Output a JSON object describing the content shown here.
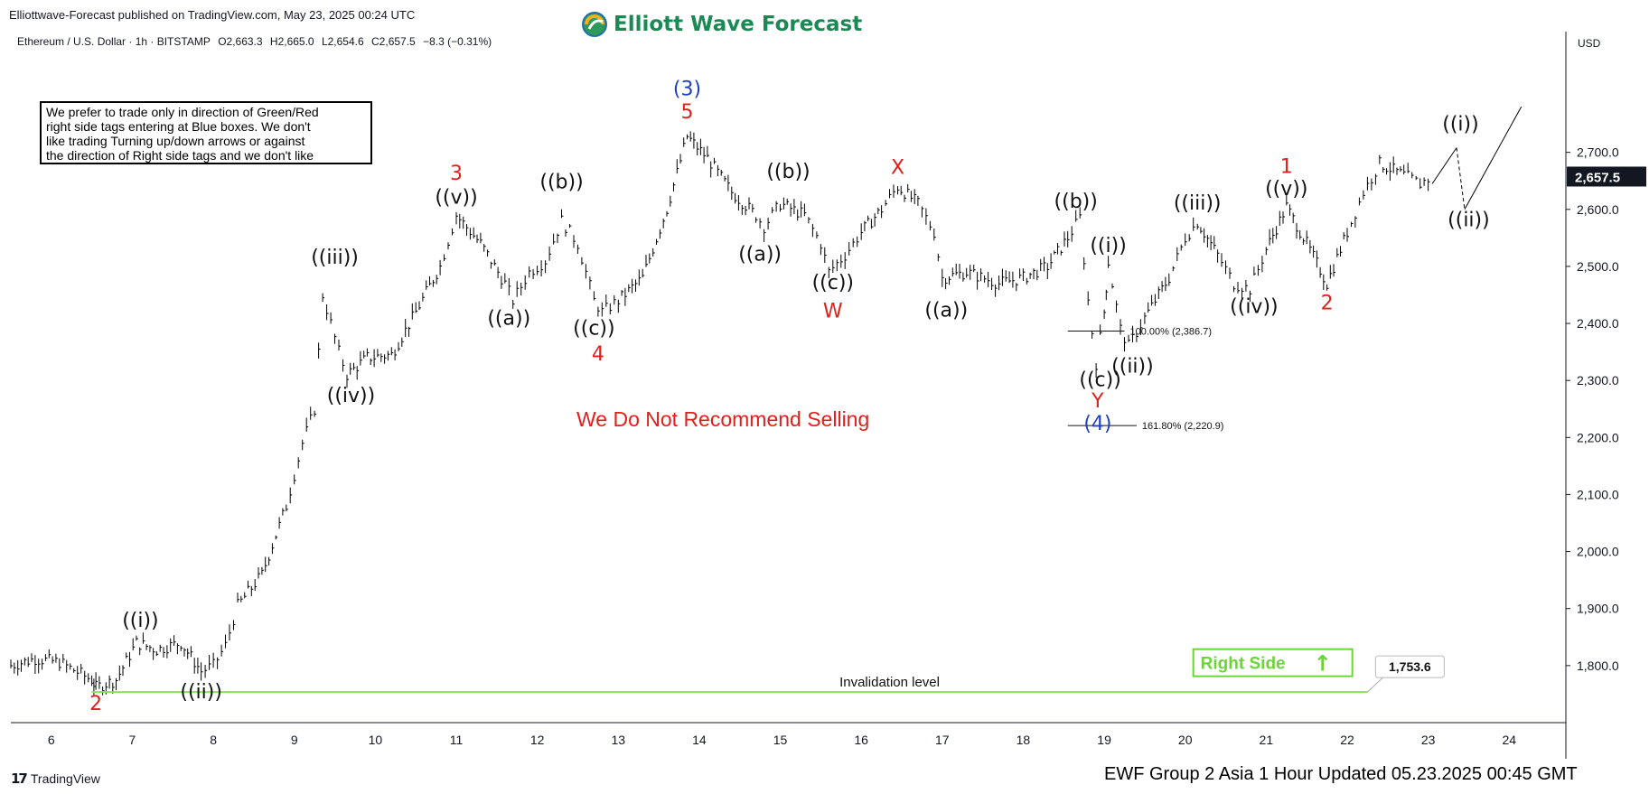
{
  "header": {
    "published": "Elliottwave-Forecast published on TradingView.com, May 23, 2025 00:24 UTC",
    "brand": "Elliott Wave Forecast",
    "symbol_name": "Ethereum / U.S. Dollar · 1h · BITSTAMP",
    "open": "O2,663.3",
    "high": "H2,665.0",
    "low": "L2,654.6",
    "close": "C2,657.5",
    "change": "−8.3 (−0.31%)"
  },
  "note": {
    "lines": [
      "We prefer to trade only in direction of Green/Red",
      "right side tags entering at Blue boxes. We don't",
      "like trading Turning up/down arrows or against",
      "the direction of Right side tags and we don't like"
    ]
  },
  "footer": {
    "tradingview": "TradingView",
    "updated": "EWF Group 2 Asia 1 Hour Updated 05.23.2025 00:45 GMT"
  },
  "colors": {
    "black_label": "#111111",
    "red_label": "#e0201b",
    "blue_label": "#1f3fbf",
    "green": "#8ee05c",
    "green_text": "#6cd43a",
    "warning": "#e0201b",
    "brand": "#1a8a55"
  },
  "chart_data": {
    "type": "line",
    "price_axis_currency": "USD",
    "ylim": [
      1700,
      2880
    ],
    "y_ticks": [
      1800,
      1900,
      2000,
      2100,
      2200,
      2300,
      2400,
      2500,
      2600,
      2700
    ],
    "y_tick_labels": [
      "1,800.0",
      "1,900.0",
      "2,000.0",
      "2,100.0",
      "2,200.0",
      "2,300.0",
      "2,400.0",
      "2,500.0",
      "2,600.0",
      "2,700.0"
    ],
    "xlim": [
      5.5,
      24.7
    ],
    "x_ticks": [
      6,
      7,
      8,
      9,
      10,
      11,
      12,
      13,
      14,
      15,
      16,
      17,
      18,
      19,
      20,
      21,
      22,
      23,
      24
    ],
    "x_tick_labels": [
      "6",
      "7",
      "8",
      "9",
      "10",
      "11",
      "12",
      "13",
      "14",
      "15",
      "16",
      "17",
      "18",
      "19",
      "20",
      "21",
      "22",
      "23",
      "24"
    ],
    "last_price": 2657.5,
    "last_price_label": "2,657.5",
    "price_path": [
      [
        5.5,
        1800
      ],
      [
        5.8,
        1812
      ],
      [
        6.1,
        1806
      ],
      [
        6.5,
        1775
      ],
      [
        6.55,
        1762
      ],
      [
        6.8,
        1775
      ],
      [
        7.05,
        1840
      ],
      [
        7.3,
        1828
      ],
      [
        7.6,
        1840
      ],
      [
        7.85,
        1790
      ],
      [
        8.0,
        1800
      ],
      [
        8.15,
        1835
      ],
      [
        8.3,
        1905
      ],
      [
        8.6,
        1960
      ],
      [
        8.9,
        2080
      ],
      [
        9.1,
        2190
      ],
      [
        9.25,
        2250
      ],
      [
        9.35,
        2450
      ],
      [
        9.55,
        2350
      ],
      [
        9.65,
        2310
      ],
      [
        9.9,
        2340
      ],
      [
        10.2,
        2345
      ],
      [
        10.5,
        2420
      ],
      [
        10.8,
        2500
      ],
      [
        11.0,
        2590
      ],
      [
        11.3,
        2540
      ],
      [
        11.6,
        2470
      ],
      [
        11.7,
        2440
      ],
      [
        11.9,
        2490
      ],
      [
        12.1,
        2510
      ],
      [
        12.3,
        2580
      ],
      [
        12.5,
        2540
      ],
      [
        12.7,
        2440
      ],
      [
        12.8,
        2420
      ],
      [
        13.0,
        2440
      ],
      [
        13.3,
        2480
      ],
      [
        13.6,
        2600
      ],
      [
        13.85,
        2728
      ],
      [
        14.1,
        2690
      ],
      [
        14.4,
        2630
      ],
      [
        14.7,
        2590
      ],
      [
        14.8,
        2570
      ],
      [
        15.0,
        2610
      ],
      [
        15.3,
        2590
      ],
      [
        15.5,
        2540
      ],
      [
        15.6,
        2490
      ],
      [
        15.8,
        2520
      ],
      [
        16.0,
        2560
      ],
      [
        16.25,
        2600
      ],
      [
        16.45,
        2640
      ],
      [
        16.7,
        2610
      ],
      [
        16.9,
        2560
      ],
      [
        17.0,
        2480
      ],
      [
        17.3,
        2490
      ],
      [
        17.7,
        2470
      ],
      [
        18.0,
        2480
      ],
      [
        18.3,
        2500
      ],
      [
        18.55,
        2550
      ],
      [
        18.7,
        2585
      ],
      [
        18.8,
        2440
      ],
      [
        18.9,
        2330
      ],
      [
        19.0,
        2420
      ],
      [
        19.05,
        2508
      ],
      [
        19.2,
        2390
      ],
      [
        19.3,
        2360
      ],
      [
        19.5,
        2410
      ],
      [
        19.8,
        2480
      ],
      [
        20.0,
        2550
      ],
      [
        20.15,
        2578
      ],
      [
        20.4,
        2520
      ],
      [
        20.6,
        2470
      ],
      [
        20.8,
        2460
      ],
      [
        21.0,
        2530
      ],
      [
        21.25,
        2605
      ],
      [
        21.5,
        2540
      ],
      [
        21.75,
        2470
      ],
      [
        22.0,
        2560
      ],
      [
        22.2,
        2630
      ],
      [
        22.4,
        2680
      ],
      [
        22.7,
        2660
      ],
      [
        22.9,
        2645
      ],
      [
        23.05,
        2657.5
      ]
    ],
    "projection": [
      [
        23.05,
        2645
      ],
      [
        23.35,
        2708
      ],
      [
        23.45,
        2600
      ],
      [
        24.15,
        2780
      ]
    ],
    "invalidation": {
      "value": 1753.6,
      "value_label": "1,753.6",
      "label": "Invalidation level",
      "x_start": 6.5,
      "x_end": 22.25
    },
    "right_side_tag": {
      "label": "Right Side",
      "arrow": "↑",
      "x": 20.1,
      "y": 1775
    },
    "fib_levels": [
      {
        "label": "100.00% (2,386.7)",
        "value": 2386.7,
        "x_start": 18.55,
        "x_end": 19.25
      },
      {
        "label": "161.80% (2,220.9)",
        "value": 2220.9,
        "x_start": 18.55,
        "x_end": 19.4
      }
    ],
    "warning_text": "We Do Not Recommend Selling",
    "wave_labels": [
      {
        "text": "2",
        "x": 6.55,
        "y": 1722,
        "color": "red"
      },
      {
        "text": "((i))",
        "x": 7.1,
        "y": 1868,
        "color": "black"
      },
      {
        "text": "((ii))",
        "x": 7.85,
        "y": 1743,
        "color": "black"
      },
      {
        "text": "((iii))",
        "x": 9.5,
        "y": 2505,
        "color": "black"
      },
      {
        "text": "((iv))",
        "x": 9.7,
        "y": 2262,
        "color": "black"
      },
      {
        "text": "3",
        "x": 11.0,
        "y": 2652,
        "color": "red"
      },
      {
        "text": "((v))",
        "x": 11.0,
        "y": 2610,
        "color": "black"
      },
      {
        "text": "((a))",
        "x": 11.65,
        "y": 2398,
        "color": "black"
      },
      {
        "text": "((b))",
        "x": 12.3,
        "y": 2637,
        "color": "black"
      },
      {
        "text": "((c))",
        "x": 12.7,
        "y": 2380,
        "color": "black"
      },
      {
        "text": "4",
        "x": 12.75,
        "y": 2335,
        "color": "red"
      },
      {
        "text": "(3)",
        "x": 13.85,
        "y": 2800,
        "color": "blue"
      },
      {
        "text": "5",
        "x": 13.85,
        "y": 2760,
        "color": "red"
      },
      {
        "text": "((a))",
        "x": 14.75,
        "y": 2510,
        "color": "black"
      },
      {
        "text": "((b))",
        "x": 15.1,
        "y": 2655,
        "color": "black"
      },
      {
        "text": "((c))",
        "x": 15.65,
        "y": 2460,
        "color": "black"
      },
      {
        "text": "W",
        "x": 15.65,
        "y": 2410,
        "color": "red"
      },
      {
        "text": "X",
        "x": 16.45,
        "y": 2662,
        "color": "red"
      },
      {
        "text": "((a))",
        "x": 17.05,
        "y": 2412,
        "color": "black"
      },
      {
        "text": "((b))",
        "x": 18.65,
        "y": 2603,
        "color": "black"
      },
      {
        "text": "((i))",
        "x": 19.05,
        "y": 2525,
        "color": "black"
      },
      {
        "text": "((c))",
        "x": 18.95,
        "y": 2290,
        "color": "black"
      },
      {
        "text": "((ii))",
        "x": 19.35,
        "y": 2314,
        "color": "black"
      },
      {
        "text": "Y",
        "x": 18.92,
        "y": 2253,
        "color": "red"
      },
      {
        "text": "(4)",
        "x": 18.92,
        "y": 2213,
        "color": "blue"
      },
      {
        "text": "((iii))",
        "x": 20.15,
        "y": 2600,
        "color": "black"
      },
      {
        "text": "((iv))",
        "x": 20.85,
        "y": 2418,
        "color": "black"
      },
      {
        "text": "1",
        "x": 21.25,
        "y": 2664,
        "color": "red"
      },
      {
        "text": "((v))",
        "x": 21.25,
        "y": 2625,
        "color": "black"
      },
      {
        "text": "2",
        "x": 21.75,
        "y": 2425,
        "color": "red"
      },
      {
        "text": "((i))",
        "x": 23.4,
        "y": 2738,
        "color": "black"
      },
      {
        "text": "((ii))",
        "x": 23.5,
        "y": 2570,
        "color": "black"
      }
    ]
  }
}
